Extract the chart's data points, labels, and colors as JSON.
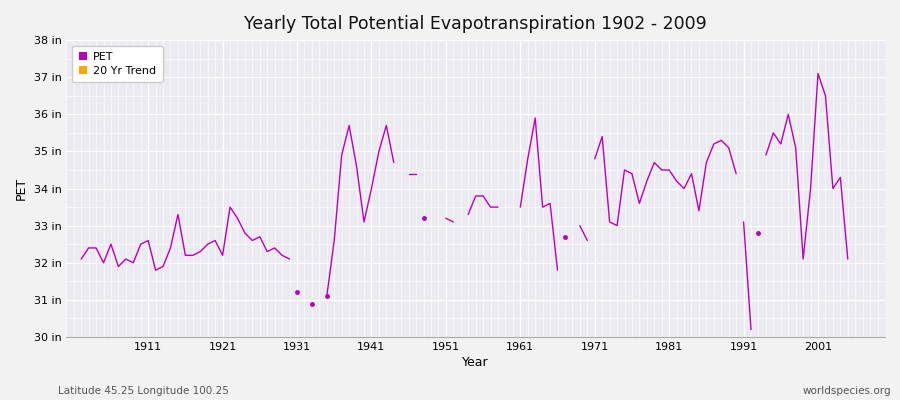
{
  "title": "Yearly Total Potential Evapotranspiration 1902 - 2009",
  "xlabel": "Year",
  "ylabel": "PET",
  "footnote_left": "Latitude 45.25 Longitude 100.25",
  "footnote_right": "worldspecies.org",
  "ylim": [
    30,
    38
  ],
  "ytick_labels": [
    "30 in",
    "31 in",
    "32 in",
    "33 in",
    "34 in",
    "35 in",
    "36 in",
    "37 in",
    "38 in"
  ],
  "ytick_values": [
    30,
    31,
    32,
    33,
    34,
    35,
    36,
    37,
    38
  ],
  "xtick_values": [
    1911,
    1921,
    1931,
    1941,
    1951,
    1961,
    1971,
    1981,
    1991,
    2001
  ],
  "line_color": "#BB00BB",
  "trend_color": "#FFA500",
  "bg_color": "#EAEAF0",
  "grid_color": "#FFFFFF",
  "pet_segments": [
    {
      "years": [
        1902,
        1903,
        1904,
        1905,
        1906,
        1907,
        1908,
        1909,
        1910,
        1911,
        1912,
        1913,
        1914,
        1915,
        1916,
        1917,
        1918,
        1919,
        1920,
        1921,
        1922,
        1923,
        1924,
        1925,
        1926,
        1927,
        1928,
        1929,
        1930
      ],
      "values": [
        32.1,
        32.4,
        32.4,
        32.0,
        32.5,
        31.9,
        32.1,
        32.0,
        32.5,
        32.6,
        31.8,
        31.9,
        32.4,
        33.3,
        32.2,
        32.2,
        32.3,
        32.5,
        32.6,
        32.2,
        33.5,
        33.2,
        32.8,
        32.6,
        32.7,
        32.3,
        32.4,
        32.2,
        32.1
      ]
    },
    {
      "years": [
        1933
      ],
      "values": [
        30.9
      ]
    },
    {
      "years": [
        1935,
        1936,
        1937,
        1938,
        1939,
        1940,
        1941,
        1942,
        1943,
        1944
      ],
      "values": [
        31.1,
        32.6,
        34.9,
        35.7,
        34.6,
        33.1,
        34.0,
        35.0,
        35.7,
        34.7
      ]
    },
    {
      "years": [
        1946,
        1947
      ],
      "values": [
        34.4,
        34.4
      ]
    },
    {
      "years": [
        1948
      ],
      "values": [
        33.2
      ]
    },
    {
      "years": [
        1951,
        1952
      ],
      "values": [
        33.2,
        33.1
      ]
    },
    {
      "years": [
        1954,
        1955,
        1956,
        1957,
        1958
      ],
      "values": [
        33.3,
        33.8,
        33.8,
        33.5,
        33.5
      ]
    },
    {
      "years": [
        1961,
        1962,
        1963,
        1964,
        1965,
        1966
      ],
      "values": [
        33.5,
        34.8,
        35.9,
        33.5,
        33.6,
        31.8
      ]
    },
    {
      "years": [
        1969,
        1970
      ],
      "values": [
        33.0,
        32.6
      ]
    },
    {
      "years": [
        1971,
        1972,
        1973,
        1974,
        1975,
        1976,
        1977,
        1978,
        1979,
        1980,
        1981,
        1982,
        1983,
        1984,
        1985,
        1986,
        1987,
        1988,
        1989,
        1990
      ],
      "values": [
        34.8,
        35.4,
        33.1,
        33.0,
        34.5,
        34.4,
        33.6,
        34.2,
        34.7,
        34.5,
        34.5,
        34.2,
        34.0,
        34.4,
        33.4,
        34.7,
        35.2,
        35.3,
        35.1,
        34.4
      ]
    },
    {
      "years": [
        1991,
        1992
      ],
      "values": [
        33.1,
        30.2
      ]
    },
    {
      "years": [
        1994,
        1995,
        1996,
        1997,
        1998,
        1999,
        2000,
        2001,
        2002,
        2003,
        2004,
        2005
      ],
      "values": [
        34.9,
        35.5,
        35.2,
        36.0,
        35.1,
        32.1,
        34.0,
        37.1,
        36.5,
        34.0,
        34.3,
        32.1
      ]
    }
  ],
  "isolated_points": [
    {
      "year": 1931,
      "value": 31.2
    },
    {
      "year": 1935,
      "value": 31.1
    },
    {
      "year": 1967,
      "value": 32.7
    },
    {
      "year": 1993,
      "value": 32.8
    }
  ]
}
